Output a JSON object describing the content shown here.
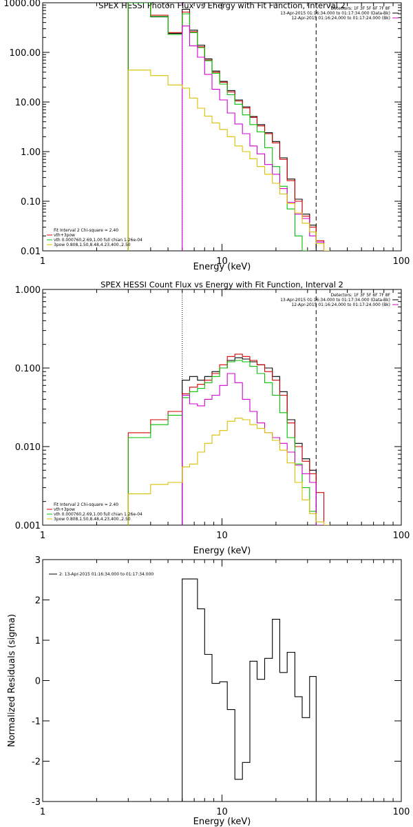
{
  "chart_data": [
    {
      "type": "line",
      "title": "SPEX HESSI Photon Flux vs Energy with Fit Function, Interval 2",
      "xlabel": "Energy (keV)",
      "ylabel": "",
      "xscale": "log",
      "yscale": "log",
      "xlim": [
        1,
        100
      ],
      "ylim": [
        0.01,
        1000
      ],
      "xticks": [
        "1",
        "10",
        "100"
      ],
      "yticks": [
        "0.01",
        "0.10",
        "1.00",
        "10.00",
        "100.00",
        "1000.00"
      ],
      "info_lines": [
        {
          "text": "Detectors: 1F 3F 5F 6F 7F 8F"
        },
        {
          "text": "13-Apr-2015 01:16:34.000 to 01:17:34.000 (Data-Bk)",
          "color": "#000000"
        },
        {
          "text": "12-Apr-2015 01:16:24.000 to 01:17:24.000 (Bk)",
          "color": "#d000d0"
        }
      ],
      "fit_legend": [
        {
          "text": "Fit Interval  2   Chi-square = 2.40",
          "color": ""
        },
        {
          "text": "vth+3pow",
          "color": "#d00000"
        },
        {
          "text": "vth 0.000760,2.69,1.00  full chian 1.26e-04",
          "color": "#00c000"
        },
        {
          "text": "3pow 0.808,1.50,8.48,4.23,400.,2.50",
          "color": "#d8c000"
        }
      ],
      "vlines": [
        {
          "x": 6.0,
          "style": "dotted",
          "color": "#d000d0"
        },
        {
          "x": 33.5,
          "style": "dashed",
          "color": "#000000"
        }
      ],
      "bin_edges": [
        3.0,
        4.0,
        5.0,
        6.0,
        6.6,
        7.3,
        8.0,
        8.8,
        9.7,
        10.7,
        11.8,
        13.0,
        14.3,
        15.7,
        17.3,
        19.1,
        21.0,
        23.1,
        25.5,
        28.0,
        30.8,
        33.5,
        37.0,
        40.0
      ],
      "series": [
        {
          "name": "",
          "color": "#000000",
          "values": [
            1000,
            520,
            240,
            740,
            280,
            140,
            74,
            42,
            26,
            17,
            11,
            8,
            5.1,
            3.5,
            2.4,
            1.6,
            0.75,
            0.28,
            0.11,
            0.055,
            0.033,
            null,
            null
          ]
        },
        {
          "name": "",
          "color": "#d00000",
          "values": [
            1050,
            560,
            250,
            650,
            260,
            130,
            70,
            40,
            25,
            16,
            10.5,
            7.6,
            4.9,
            3.3,
            2.3,
            1.5,
            0.7,
            0.26,
            0.1,
            0.05,
            0.03,
            0.016,
            null
          ]
        },
        {
          "name": "",
          "color": "#00c000",
          "values": [
            1000,
            530,
            230,
            600,
            250,
            125,
            68,
            38,
            23,
            14,
            9,
            5.5,
            3.5,
            2.5,
            1.2,
            0.5,
            0.2,
            0.07,
            0.02,
            0.01,
            null,
            null,
            null
          ]
        },
        {
          "name": "",
          "color": "#d000d0",
          "values": [
            null,
            null,
            null,
            340,
            135,
            80,
            36,
            18,
            11,
            6,
            3.6,
            2.3,
            1.3,
            0.9,
            0.55,
            0.35,
            0.18,
            0.095,
            0.055,
            0.045,
            0.02,
            0.015,
            null
          ]
        },
        {
          "name": "",
          "color": "#d8c000",
          "values": [
            44,
            34,
            22,
            19,
            12,
            7.5,
            5.2,
            3.8,
            2.8,
            2.0,
            1.3,
            1.0,
            0.72,
            0.5,
            0.35,
            0.23,
            0.14,
            0.09,
            0.058,
            0.036,
            0.024,
            0.014,
            0.01
          ]
        }
      ]
    },
    {
      "type": "line",
      "title": "SPEX HESSI Count Flux vs Energy with Fit Function, Interval 2",
      "xlabel": "Energy (keV)",
      "ylabel": "",
      "xscale": "log",
      "yscale": "log",
      "xlim": [
        1,
        100
      ],
      "ylim": [
        0.001,
        1
      ],
      "xticks": [
        "1",
        "10",
        "100"
      ],
      "yticks": [
        "0.001",
        "0.010",
        "0.100",
        "1.000"
      ],
      "info_lines": [
        {
          "text": "Detectors: 1F 3F 5F 6F 7F 8F"
        },
        {
          "text": "13-Apr-2015 01:16:34.000 to 01:17:34.000 (Data-Bk)",
          "color": "#000000"
        },
        {
          "text": "12-Apr-2015 01:16:24.000 to 01:17:24.000 (Bk)",
          "color": "#d000d0"
        }
      ],
      "fit_legend": [
        {
          "text": "Fit Interval  2   Chi-square = 2.40",
          "color": ""
        },
        {
          "text": "vth+3pow",
          "color": "#d00000"
        },
        {
          "text": "vth 0.000760,2.69,1.00  full chian 1.26e-04",
          "color": "#00c000"
        },
        {
          "text": "3pow 0.808,1.50,8.48,4.23,400.,2.50",
          "color": "#d8c000"
        }
      ],
      "vlines": [
        {
          "x": 6.0,
          "style": "dotted",
          "color": "#000000"
        },
        {
          "x": 33.5,
          "style": "dashed",
          "color": "#000000"
        }
      ],
      "bin_edges": [
        3.0,
        4.0,
        5.0,
        6.0,
        6.6,
        7.3,
        8.0,
        8.8,
        9.7,
        10.7,
        11.8,
        13.0,
        14.3,
        15.7,
        17.3,
        19.1,
        21.0,
        23.1,
        25.5,
        28.0,
        30.8,
        33.5,
        37.0,
        40.0
      ],
      "series": [
        {
          "name": "",
          "color": "#000000",
          "values": [
            null,
            null,
            null,
            0.07,
            0.078,
            0.07,
            0.078,
            0.09,
            0.1,
            0.125,
            0.135,
            0.13,
            0.12,
            0.11,
            0.1,
            0.078,
            0.05,
            0.022,
            0.011,
            0.007,
            0.005,
            null,
            null
          ]
        },
        {
          "name": "",
          "color": "#d00000",
          "values": [
            0.015,
            0.022,
            0.028,
            0.047,
            0.057,
            0.062,
            0.07,
            0.085,
            0.11,
            0.14,
            0.15,
            0.14,
            0.125,
            0.11,
            0.09,
            0.07,
            0.045,
            0.02,
            0.01,
            0.0065,
            0.0045,
            0.0026,
            null
          ]
        },
        {
          "name": "",
          "color": "#00c000",
          "values": [
            0.013,
            0.019,
            0.025,
            0.042,
            0.05,
            0.055,
            0.065,
            0.078,
            0.1,
            0.12,
            0.125,
            0.12,
            0.105,
            0.085,
            0.065,
            0.045,
            0.027,
            0.013,
            0.006,
            0.003,
            0.0015,
            null,
            null
          ]
        },
        {
          "name": "",
          "color": "#d000d0",
          "values": [
            null,
            null,
            null,
            0.045,
            0.035,
            0.033,
            0.04,
            0.045,
            0.06,
            0.085,
            0.065,
            0.04,
            0.028,
            0.02,
            0.015,
            0.013,
            0.011,
            0.0085,
            0.0058,
            0.0045,
            0.0035,
            0.001,
            null
          ]
        },
        {
          "name": "",
          "color": "#d8c000",
          "values": [
            0.0025,
            0.0033,
            0.0035,
            0.0055,
            0.006,
            0.0085,
            0.011,
            0.014,
            0.016,
            0.021,
            0.023,
            0.022,
            0.019,
            0.017,
            0.015,
            0.012,
            0.009,
            0.0062,
            0.0035,
            0.0021,
            0.0014,
            0.0011,
            0.001
          ]
        }
      ]
    },
    {
      "type": "line",
      "title": "",
      "xlabel": "Energy (keV)",
      "ylabel": "Normalized Residuals (sigma)",
      "xscale": "log",
      "yscale": "linear",
      "xlim": [
        1,
        100
      ],
      "ylim": [
        -3,
        3
      ],
      "xticks": [
        "1",
        "10",
        "100"
      ],
      "yticks": [
        "-3",
        "-2",
        "-1",
        "0",
        "1",
        "2",
        "3"
      ],
      "info_lines": [
        {
          "text": "2: 13-Apr-2015 01:16:34.000 to 01:17:34.000",
          "color": "#000000"
        }
      ],
      "bin_edges": [
        6.0,
        7.3,
        8.0,
        8.8,
        9.7,
        10.7,
        11.8,
        13.0,
        14.3,
        15.7,
        17.3,
        19.1,
        21.0,
        23.1,
        25.5,
        28.0,
        30.8,
        33.5
      ],
      "series": [
        {
          "name": "",
          "color": "#000000",
          "values": [
            2.52,
            1.78,
            0.65,
            -0.07,
            -0.03,
            -0.72,
            -2.45,
            -2.03,
            0.48,
            0.03,
            0.55,
            1.52,
            0.2,
            0.7,
            -0.4,
            -0.92,
            0.1
          ]
        }
      ]
    }
  ]
}
